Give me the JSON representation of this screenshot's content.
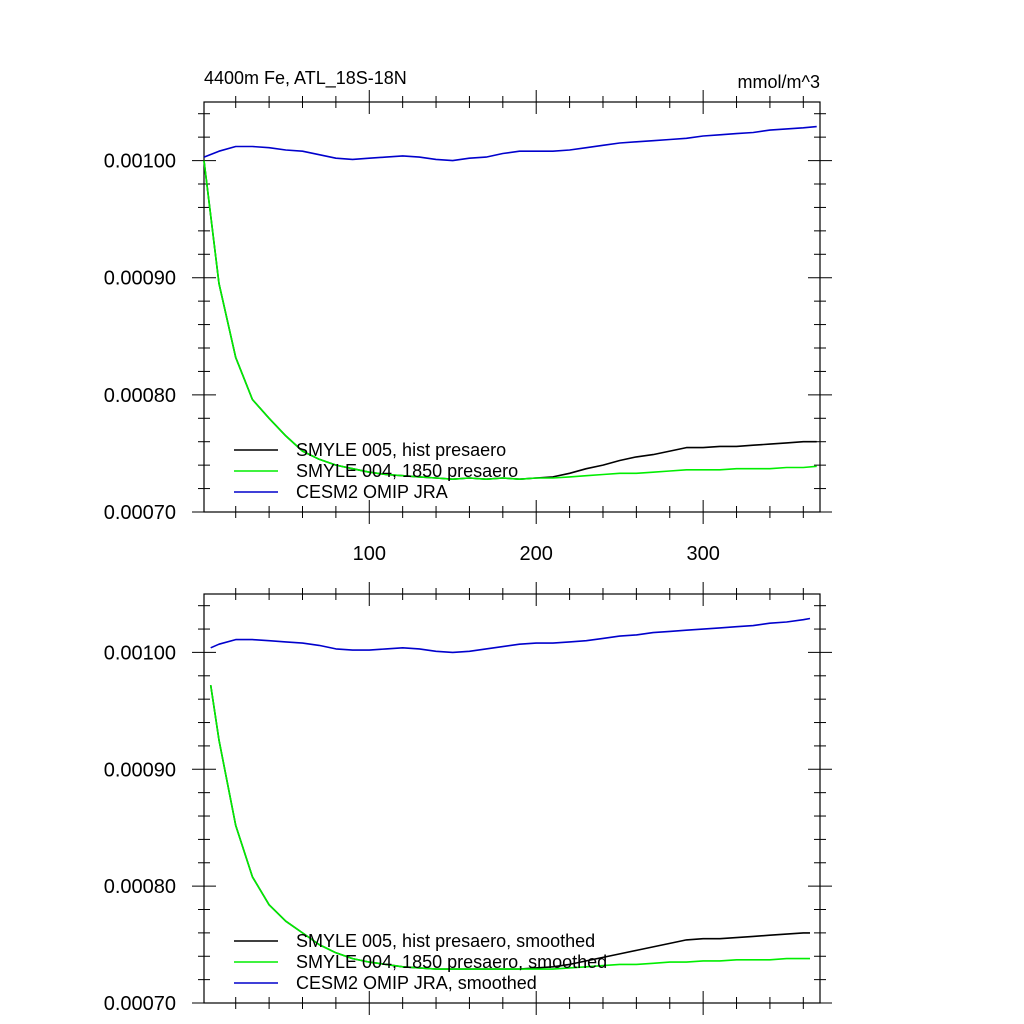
{
  "colors": {
    "black": "#000000",
    "green": "#00ee00",
    "blue": "#0000cc"
  },
  "chart_data": [
    {
      "type": "line",
      "title": "4400m Fe, ATL_18S-18N",
      "units": "mmol/m^3",
      "xlim": [
        1,
        370
      ],
      "ylim": [
        0.0007,
        0.00105
      ],
      "xticks": [
        100,
        200,
        300
      ],
      "xtick_labels": [
        "100",
        "200",
        "300"
      ],
      "yticks": [
        0.0007,
        0.0008,
        0.0009,
        0.001
      ],
      "ytick_labels": [
        "0.00070",
        "0.00080",
        "0.00090",
        "0.00100"
      ],
      "legend_position": "bottom-left",
      "series": [
        {
          "name": "SMYLE 005, hist presaero",
          "color": "#000000",
          "x": [
            1,
            10,
            20,
            30,
            40,
            50,
            60,
            70,
            80,
            90,
            100,
            110,
            120,
            130,
            140,
            150,
            160,
            170,
            180,
            190,
            200,
            210,
            220,
            230,
            240,
            250,
            260,
            270,
            280,
            290,
            300,
            310,
            320,
            330,
            340,
            350,
            360,
            368
          ],
          "y": [
            0.001,
            0.000895,
            0.000832,
            0.000796,
            0.00078,
            0.000765,
            0.000752,
            0.000745,
            0.00074,
            0.000737,
            0.000734,
            0.000732,
            0.000731,
            0.00073,
            0.000729,
            0.000728,
            0.000729,
            0.000728,
            0.000729,
            0.000728,
            0.000729,
            0.00073,
            0.000733,
            0.000737,
            0.00074,
            0.000744,
            0.000747,
            0.000749,
            0.000752,
            0.000755,
            0.000755,
            0.000756,
            0.000756,
            0.000757,
            0.000758,
            0.000759,
            0.00076,
            0.00076
          ]
        },
        {
          "name": "SMYLE 004, 1850 presaero",
          "color": "#00ee00",
          "x": [
            1,
            10,
            20,
            30,
            40,
            50,
            60,
            70,
            80,
            90,
            100,
            110,
            120,
            130,
            140,
            150,
            160,
            170,
            180,
            190,
            200,
            210,
            220,
            230,
            240,
            250,
            260,
            270,
            280,
            290,
            300,
            310,
            320,
            330,
            340,
            350,
            360,
            368
          ],
          "y": [
            0.001,
            0.000895,
            0.000832,
            0.000796,
            0.00078,
            0.000765,
            0.000752,
            0.000745,
            0.00074,
            0.000737,
            0.000734,
            0.000732,
            0.000731,
            0.00073,
            0.000729,
            0.000728,
            0.000729,
            0.000728,
            0.000729,
            0.000728,
            0.000729,
            0.000729,
            0.00073,
            0.000731,
            0.000732,
            0.000733,
            0.000733,
            0.000734,
            0.000735,
            0.000736,
            0.000736,
            0.000736,
            0.000737,
            0.000737,
            0.000737,
            0.000738,
            0.000738,
            0.000739
          ]
        },
        {
          "name": "CESM2 OMIP JRA",
          "color": "#0000cc",
          "x": [
            1,
            10,
            20,
            30,
            40,
            50,
            60,
            70,
            80,
            90,
            100,
            110,
            120,
            130,
            140,
            150,
            160,
            170,
            180,
            190,
            200,
            210,
            220,
            230,
            240,
            250,
            260,
            270,
            280,
            290,
            300,
            310,
            320,
            330,
            340,
            350,
            360,
            368
          ],
          "y": [
            0.001003,
            0.001008,
            0.001012,
            0.001012,
            0.001011,
            0.001009,
            0.001008,
            0.001005,
            0.001002,
            0.001001,
            0.001002,
            0.001003,
            0.001004,
            0.001003,
            0.001001,
            0.001,
            0.001002,
            0.001003,
            0.001006,
            0.001008,
            0.001008,
            0.001008,
            0.001009,
            0.001011,
            0.001013,
            0.001015,
            0.001016,
            0.001017,
            0.001018,
            0.001019,
            0.001021,
            0.001022,
            0.001023,
            0.001024,
            0.001026,
            0.001027,
            0.001028,
            0.001029
          ]
        }
      ]
    },
    {
      "type": "line",
      "title": "",
      "units": "",
      "xlim": [
        1,
        370
      ],
      "ylim": [
        0.0007,
        0.00105
      ],
      "xticks": [
        100,
        200,
        300
      ],
      "xtick_labels": [],
      "yticks": [
        0.0007,
        0.0008,
        0.0009,
        0.001
      ],
      "ytick_labels": [
        "0.00070",
        "0.00080",
        "0.00090",
        "0.00100"
      ],
      "legend_position": "bottom-left",
      "series": [
        {
          "name": "SMYLE 005, hist presaero, smoothed",
          "color": "#000000",
          "x": [
            5,
            10,
            20,
            30,
            40,
            50,
            60,
            70,
            80,
            90,
            100,
            110,
            120,
            130,
            140,
            150,
            160,
            170,
            180,
            190,
            200,
            210,
            220,
            230,
            240,
            250,
            260,
            270,
            280,
            290,
            300,
            310,
            320,
            330,
            340,
            350,
            360,
            364
          ],
          "y": [
            0.000972,
            0.000925,
            0.000852,
            0.000808,
            0.000784,
            0.00077,
            0.00076,
            0.00075,
            0.000743,
            0.000738,
            0.000735,
            0.000733,
            0.000731,
            0.00073,
            0.000729,
            0.000729,
            0.000729,
            0.000729,
            0.000729,
            0.000729,
            0.00073,
            0.000731,
            0.000733,
            0.000736,
            0.000739,
            0.000742,
            0.000745,
            0.000748,
            0.000751,
            0.000754,
            0.000755,
            0.000755,
            0.000756,
            0.000757,
            0.000758,
            0.000759,
            0.00076,
            0.00076
          ]
        },
        {
          "name": "SMYLE 004, 1850 presaero, smoothed",
          "color": "#00ee00",
          "x": [
            5,
            10,
            20,
            30,
            40,
            50,
            60,
            70,
            80,
            90,
            100,
            110,
            120,
            130,
            140,
            150,
            160,
            170,
            180,
            190,
            200,
            210,
            220,
            230,
            240,
            250,
            260,
            270,
            280,
            290,
            300,
            310,
            320,
            330,
            340,
            350,
            360,
            364
          ],
          "y": [
            0.000972,
            0.000925,
            0.000852,
            0.000808,
            0.000784,
            0.00077,
            0.00076,
            0.00075,
            0.000743,
            0.000738,
            0.000735,
            0.000733,
            0.000731,
            0.00073,
            0.000729,
            0.000729,
            0.000729,
            0.000729,
            0.000729,
            0.000729,
            0.000729,
            0.000729,
            0.00073,
            0.000731,
            0.000732,
            0.000733,
            0.000733,
            0.000734,
            0.000735,
            0.000735,
            0.000736,
            0.000736,
            0.000737,
            0.000737,
            0.000737,
            0.000738,
            0.000738,
            0.000738
          ]
        },
        {
          "name": "CESM2 OMIP JRA, smoothed",
          "color": "#0000cc",
          "x": [
            5,
            10,
            20,
            30,
            40,
            50,
            60,
            70,
            80,
            90,
            100,
            110,
            120,
            130,
            140,
            150,
            160,
            170,
            180,
            190,
            200,
            210,
            220,
            230,
            240,
            250,
            260,
            270,
            280,
            290,
            300,
            310,
            320,
            330,
            340,
            350,
            360,
            364
          ],
          "y": [
            0.001004,
            0.001007,
            0.001011,
            0.001011,
            0.00101,
            0.001009,
            0.001008,
            0.001006,
            0.001003,
            0.001002,
            0.001002,
            0.001003,
            0.001004,
            0.001003,
            0.001001,
            0.001,
            0.001001,
            0.001003,
            0.001005,
            0.001007,
            0.001008,
            0.001008,
            0.001009,
            0.00101,
            0.001012,
            0.001014,
            0.001015,
            0.001017,
            0.001018,
            0.001019,
            0.00102,
            0.001021,
            0.001022,
            0.001023,
            0.001025,
            0.001026,
            0.001028,
            0.001029
          ]
        }
      ]
    }
  ]
}
